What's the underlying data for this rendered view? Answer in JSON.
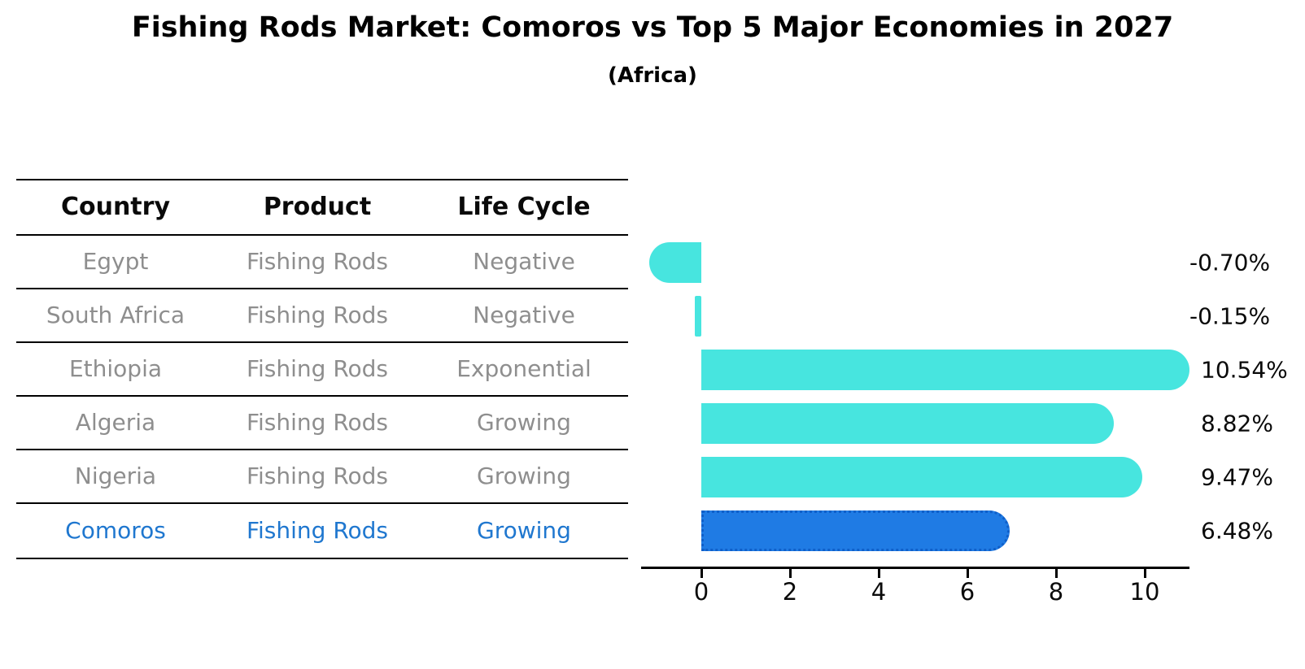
{
  "title": "Fishing Rods Market: Comoros vs Top 5 Major Economies in 2027",
  "subtitle": "(Africa)",
  "colors": {
    "bar_default": "#47e5df",
    "bar_highlight": "#1f7be4",
    "highlight_text": "#1f77cf",
    "table_text": "#8e8e8e",
    "axis": "#000000"
  },
  "table": {
    "headers": [
      "Country",
      "Product",
      "Life Cycle"
    ],
    "rows": [
      {
        "country": "Egypt",
        "product": "Fishing Rods",
        "life_cycle": "Negative",
        "highlight": false
      },
      {
        "country": "South Africa",
        "product": "Fishing Rods",
        "life_cycle": "Negative",
        "highlight": false
      },
      {
        "country": "Ethiopia",
        "product": "Fishing Rods",
        "life_cycle": "Exponential",
        "highlight": false
      },
      {
        "country": "Algeria",
        "product": "Fishing Rods",
        "life_cycle": "Growing",
        "highlight": false
      },
      {
        "country": "Nigeria",
        "product": "Fishing Rods",
        "life_cycle": "Growing",
        "highlight": true
      }
    ],
    "rows_note": "last row appended from rows_last so the bottom border can differ",
    "rows_last": {
      "country": "Comoros",
      "product": "Fishing Rods",
      "life_cycle": "Growing",
      "highlight": true
    }
  },
  "chart_data": {
    "type": "bar",
    "orientation": "horizontal",
    "categories": [
      "Egypt",
      "South Africa",
      "Ethiopia",
      "Algeria",
      "Nigeria",
      "Comoros"
    ],
    "values": [
      -0.7,
      -0.15,
      10.54,
      8.82,
      9.47,
      6.48
    ],
    "value_labels": [
      "-0.70%",
      "-0.15%",
      "10.54%",
      "8.82%",
      "9.47%",
      "6.48%"
    ],
    "highlight_index": 5,
    "x_ticks": [
      0,
      2,
      4,
      6,
      8,
      10
    ],
    "xlim": [
      -1.4,
      11.0
    ],
    "grid": false,
    "legend": "none",
    "bar_color": "#47e5df",
    "highlight_bar_color": "#1f7be4",
    "title": "Fishing Rods Market: Comoros vs Top 5 Major Economies in 2027",
    "subtitle": "(Africa)",
    "xlabel": "",
    "ylabel": ""
  }
}
